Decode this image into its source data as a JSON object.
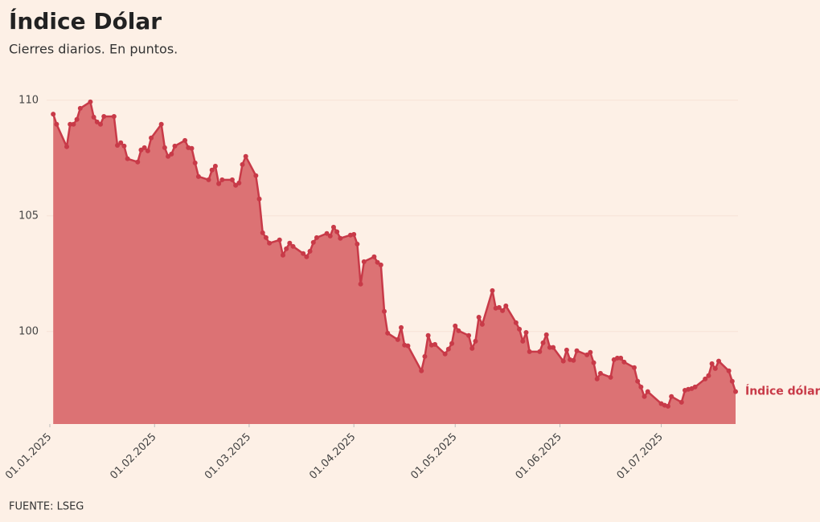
{
  "chart_data": {
    "type": "area",
    "title": "Índice Dólar",
    "subtitle": "Cierres diarios. En puntos.",
    "source": "FUENTE: LSEG",
    "x": [
      "2025-01-02",
      "2025-01-03",
      "2025-01-06",
      "2025-01-07",
      "2025-01-08",
      "2025-01-09",
      "2025-01-10",
      "2025-01-13",
      "2025-01-14",
      "2025-01-15",
      "2025-01-16",
      "2025-01-17",
      "2025-01-20",
      "2025-01-21",
      "2025-01-22",
      "2025-01-23",
      "2025-01-24",
      "2025-01-27",
      "2025-01-28",
      "2025-01-29",
      "2025-01-30",
      "2025-01-31",
      "2025-02-03",
      "2025-02-04",
      "2025-02-05",
      "2025-02-06",
      "2025-02-07",
      "2025-02-10",
      "2025-02-11",
      "2025-02-12",
      "2025-02-13",
      "2025-02-14",
      "2025-02-17",
      "2025-02-18",
      "2025-02-19",
      "2025-02-20",
      "2025-02-21",
      "2025-02-24",
      "2025-02-25",
      "2025-02-26",
      "2025-02-27",
      "2025-02-28",
      "2025-03-03",
      "2025-03-04",
      "2025-03-05",
      "2025-03-06",
      "2025-03-07",
      "2025-03-10",
      "2025-03-11",
      "2025-03-12",
      "2025-03-13",
      "2025-03-14",
      "2025-03-17",
      "2025-03-18",
      "2025-03-19",
      "2025-03-20",
      "2025-03-21",
      "2025-03-24",
      "2025-03-25",
      "2025-03-26",
      "2025-03-27",
      "2025-03-28",
      "2025-03-31",
      "2025-04-01",
      "2025-04-02",
      "2025-04-03",
      "2025-04-04",
      "2025-04-07",
      "2025-04-08",
      "2025-04-09",
      "2025-04-10",
      "2025-04-11",
      "2025-04-14",
      "2025-04-15",
      "2025-04-16",
      "2025-04-17",
      "2025-04-21",
      "2025-04-22",
      "2025-04-23",
      "2025-04-24",
      "2025-04-25",
      "2025-04-28",
      "2025-04-29",
      "2025-04-30",
      "2025-05-01",
      "2025-05-02",
      "2025-05-05",
      "2025-05-06",
      "2025-05-07",
      "2025-05-08",
      "2025-05-09",
      "2025-05-12",
      "2025-05-13",
      "2025-05-14",
      "2025-05-15",
      "2025-05-16",
      "2025-05-19",
      "2025-05-20",
      "2025-05-21",
      "2025-05-22",
      "2025-05-23",
      "2025-05-26",
      "2025-05-27",
      "2025-05-28",
      "2025-05-29",
      "2025-05-30",
      "2025-06-02",
      "2025-06-03",
      "2025-06-04",
      "2025-06-05",
      "2025-06-06",
      "2025-06-09",
      "2025-06-10",
      "2025-06-11",
      "2025-06-12",
      "2025-06-13",
      "2025-06-16",
      "2025-06-17",
      "2025-06-18",
      "2025-06-19",
      "2025-06-20",
      "2025-06-23",
      "2025-06-24",
      "2025-06-25",
      "2025-06-26",
      "2025-06-27",
      "2025-07-01",
      "2025-07-02",
      "2025-07-03",
      "2025-07-04",
      "2025-07-07",
      "2025-07-08",
      "2025-07-09",
      "2025-07-10",
      "2025-07-11",
      "2025-07-14",
      "2025-07-15",
      "2025-07-16",
      "2025-07-17",
      "2025-07-18",
      "2025-07-21",
      "2025-07-22",
      "2025-07-23"
    ],
    "series": [
      {
        "name": "Índice dólar",
        "color": "#c83a48",
        "fill": "#dc7274",
        "values": [
          109.4,
          108.96,
          107.99,
          108.96,
          108.96,
          109.17,
          109.65,
          109.93,
          109.27,
          109.06,
          108.96,
          109.3,
          109.3,
          108.05,
          108.16,
          108.02,
          107.47,
          107.33,
          107.85,
          107.95,
          107.81,
          108.37,
          108.96,
          107.95,
          107.57,
          107.67,
          108.02,
          108.26,
          107.95,
          107.92,
          107.29,
          106.7,
          106.56,
          106.98,
          107.15,
          106.39,
          106.56,
          106.56,
          106.32,
          106.42,
          107.22,
          107.57,
          106.74,
          105.73,
          104.27,
          104.06,
          103.82,
          103.96,
          103.3,
          103.58,
          103.82,
          103.68,
          103.37,
          103.23,
          103.47,
          103.85,
          104.06,
          104.24,
          104.13,
          104.51,
          104.31,
          104.03,
          104.17,
          104.2,
          103.78,
          102.05,
          103.02,
          103.23,
          102.99,
          102.88,
          100.87,
          99.93,
          99.65,
          100.17,
          99.41,
          99.38,
          98.3,
          98.92,
          99.83,
          99.41,
          99.44,
          99.03,
          99.24,
          99.48,
          100.24,
          100.03,
          99.83,
          99.27,
          99.58,
          100.62,
          100.31,
          101.77,
          101.01,
          101.04,
          100.9,
          101.11,
          100.38,
          100.1,
          99.58,
          99.96,
          99.13,
          99.13,
          99.51,
          99.86,
          99.31,
          99.31,
          98.72,
          99.2,
          98.78,
          98.75,
          99.17,
          98.99,
          99.1,
          98.65,
          97.95,
          98.19,
          98.02,
          98.78,
          98.85,
          98.85,
          98.68,
          98.44,
          97.85,
          97.6,
          97.19,
          97.4,
          96.88,
          96.81,
          96.77,
          97.19,
          96.94,
          97.46,
          97.5,
          97.53,
          97.6,
          97.95,
          98.09,
          98.61,
          98.4,
          98.72,
          98.3,
          97.85,
          97.4
        ]
      }
    ],
    "xlim": [
      "2025-01-01",
      "2025-07-23"
    ],
    "xticks": [
      {
        "value": "2025-01-01",
        "label": "01.01.2025"
      },
      {
        "value": "2025-02-01",
        "label": "01.02.2025"
      },
      {
        "value": "2025-03-01",
        "label": "01.03.2025"
      },
      {
        "value": "2025-04-01",
        "label": "01.04.2025"
      },
      {
        "value": "2025-05-01",
        "label": "01.05.2025"
      },
      {
        "value": "2025-06-01",
        "label": "01.06.2025"
      },
      {
        "value": "2025-07-01",
        "label": "01.07.2025"
      }
    ],
    "ylim": [
      96,
      111
    ],
    "yticks": [
      100,
      105,
      110
    ],
    "grid": true
  }
}
